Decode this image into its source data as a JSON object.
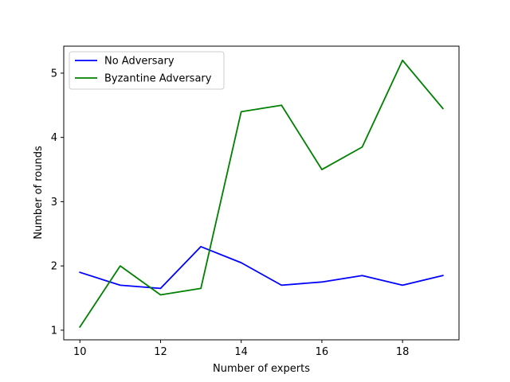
{
  "chart_data": {
    "type": "line",
    "title": "",
    "xlabel": "Number of experts",
    "ylabel": "Number of rounds",
    "xlim": [
      9.6,
      19.4
    ],
    "ylim": [
      0.85,
      5.42
    ],
    "xticks": [
      10,
      12,
      14,
      16,
      18
    ],
    "yticks": [
      1,
      2,
      3,
      4,
      5
    ],
    "grid": false,
    "legend_position": "top-left",
    "x": [
      10,
      11,
      12,
      13,
      14,
      15,
      16,
      17,
      18,
      19
    ],
    "series": [
      {
        "name": "No Adversary",
        "color": "#0000ff",
        "values": [
          1.9,
          1.7,
          1.65,
          2.3,
          2.05,
          1.7,
          1.75,
          1.85,
          1.7,
          1.85
        ]
      },
      {
        "name": "Byzantine Adversary",
        "color": "#008000",
        "values": [
          1.05,
          2.0,
          1.55,
          1.65,
          4.4,
          4.5,
          3.5,
          3.85,
          5.2,
          4.45
        ]
      }
    ]
  }
}
